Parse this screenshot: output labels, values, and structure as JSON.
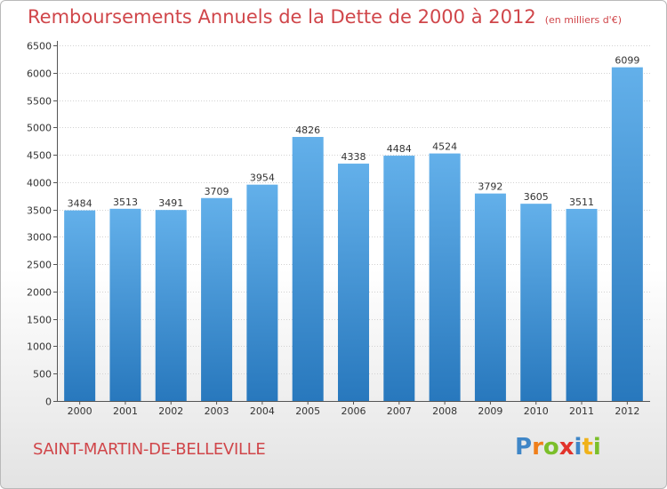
{
  "title": "Remboursements Annuels de la Dette de 2000 à 2012",
  "unit": "(en milliers d'€)",
  "place": "SAINT-MARTIN-DE-BELLEVILLE",
  "logo": {
    "text": "Proxiti",
    "letters": [
      "P",
      "r",
      "o",
      "x",
      "i",
      "t",
      "i"
    ]
  },
  "colors": {
    "title": "#d0464a",
    "bar_top": "#63b0ea",
    "bar_bottom": "#2878bd",
    "grid": "#cfcfcf"
  },
  "chart_data": {
    "type": "bar",
    "title": "Remboursements Annuels de la Dette de 2000 à 2012",
    "categories": [
      "2000",
      "2001",
      "2002",
      "2003",
      "2004",
      "2005",
      "2006",
      "2007",
      "2008",
      "2009",
      "2010",
      "2011",
      "2012"
    ],
    "values": [
      3484,
      3513,
      3491,
      3709,
      3954,
      4826,
      4338,
      4484,
      4524,
      3792,
      3605,
      3511,
      6099
    ],
    "ylim": [
      0,
      6500
    ],
    "yticks": [
      0,
      500,
      1000,
      1500,
      2000,
      2500,
      3000,
      3500,
      4000,
      4500,
      5000,
      5500,
      6000,
      6500
    ],
    "grid": true
  }
}
